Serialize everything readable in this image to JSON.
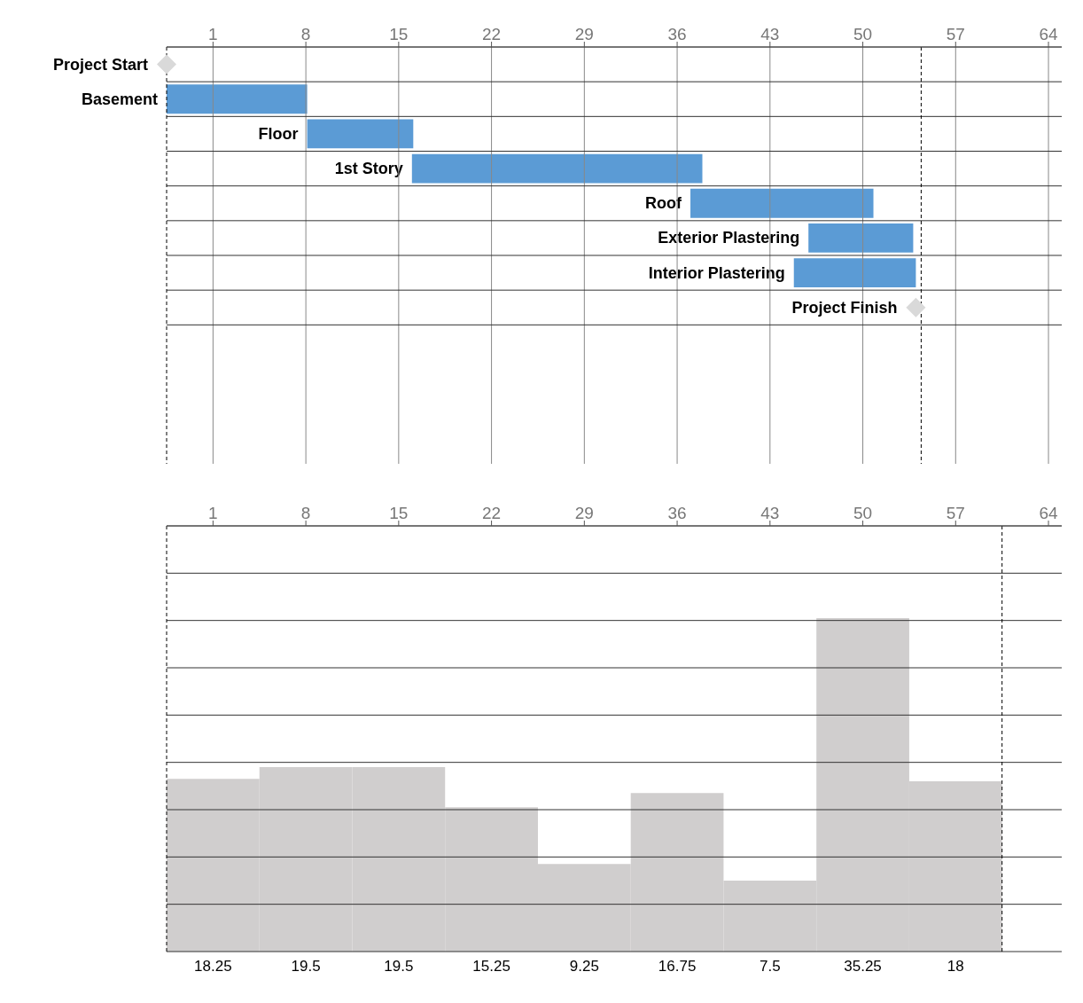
{
  "chart_data": [
    {
      "type": "bar",
      "orientation": "horizontal",
      "categories": [
        "Project Start",
        "Basement",
        "Floor",
        "1st Story",
        "Roof",
        "Exterior Plastering",
        "Interior Plastering",
        "Project Finish"
      ],
      "series": [
        {
          "type": "bar",
          "color": "#5b9bd5",
          "base": [
            null,
            -2.5,
            8.1,
            16,
            37,
            45.9,
            44.8,
            null
          ],
          "values": [
            null,
            10.6,
            8,
            21.9,
            13.8,
            7.9,
            9.2,
            null
          ]
        },
        {
          "type": "scatter",
          "marker": "diamond",
          "color": "#d9d9d9",
          "values": [
            -2.5,
            null,
            null,
            null,
            null,
            null,
            null,
            54
          ]
        }
      ],
      "xlim": [
        -2.5,
        65
      ],
      "xticks": [
        1,
        8,
        15,
        22,
        29,
        36,
        43,
        50,
        57,
        64
      ],
      "grid": true,
      "tick_labels": "x",
      "ref_lines": [
        {
          "axis": "x",
          "value": -2.5,
          "line_style": "dashed",
          "color": "#000000"
        },
        {
          "axis": "x",
          "value": 54.4,
          "line_style": "dashed",
          "color": "#000000"
        }
      ]
    },
    {
      "type": "bar",
      "x": [
        1,
        8,
        15,
        22,
        29,
        36,
        43,
        50,
        57
      ],
      "values": [
        18.25,
        19.5,
        19.5,
        15.25,
        9.25,
        16.75,
        7.5,
        35.25,
        18
      ],
      "color": "#d0cece",
      "data_labels": true,
      "xlim": [
        -2.5,
        65
      ],
      "xticks": [
        1,
        8,
        15,
        22,
        29,
        36,
        43,
        50,
        57,
        64
      ],
      "ylim": [
        0,
        45
      ],
      "yticks": [
        {
          "value": 0,
          "label": null
        },
        {
          "value": 5,
          "label": null
        },
        {
          "value": 10,
          "label": null
        },
        {
          "value": 15,
          "label": null
        },
        {
          "value": 20,
          "label": null
        },
        {
          "value": 25,
          "label": null
        },
        {
          "value": 30,
          "label": null
        },
        {
          "value": 35,
          "label": null
        },
        {
          "value": 40,
          "label": null
        },
        {
          "value": 45,
          "label": null
        }
      ],
      "grid": "y",
      "tick_labels": "x",
      "ref_lines": [
        {
          "axis": "x",
          "value": -2.5,
          "line_style": "dashed",
          "color": "#000000"
        },
        {
          "axis": "x",
          "value": 60.5,
          "line_style": "dashed",
          "color": "#000000"
        }
      ]
    }
  ]
}
